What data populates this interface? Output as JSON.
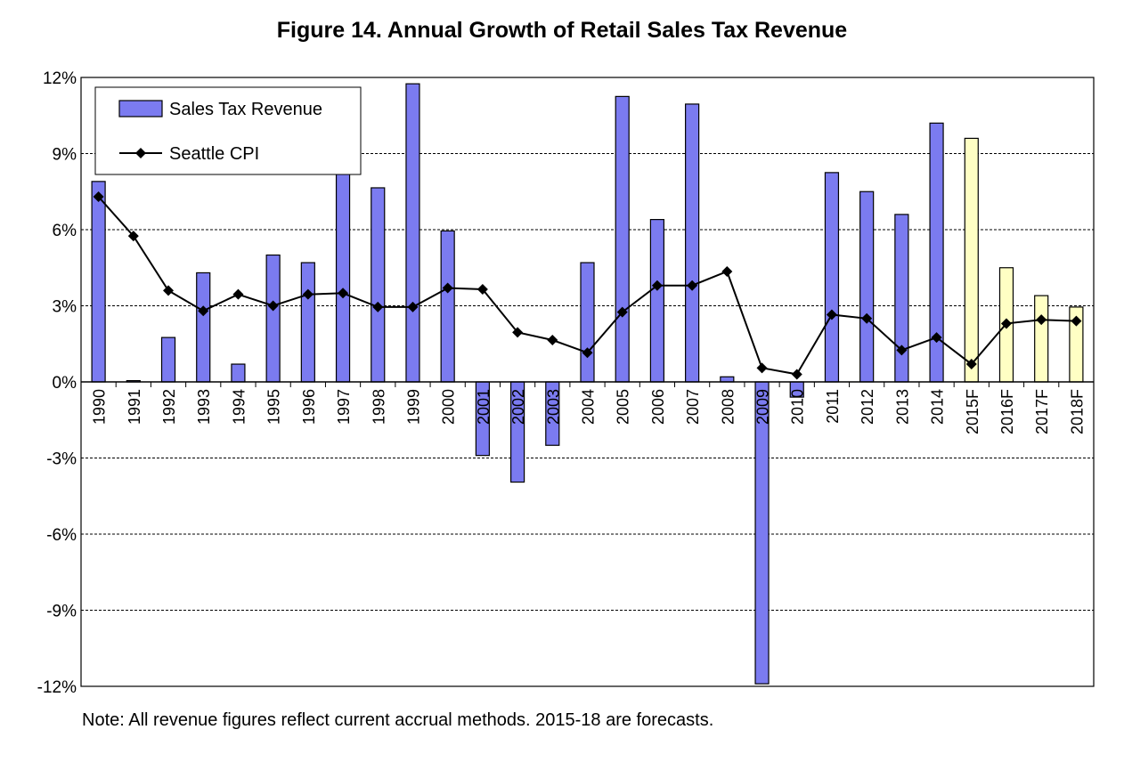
{
  "chart_data": {
    "type": "bar",
    "title": "Figure  14.  Annual Growth of Retail Sales Tax Revenue",
    "note": "Note:  All revenue figures reflect current accrual methods.  2015-18 are forecasts.",
    "categories": [
      "1990",
      "1991",
      "1992",
      "1993",
      "1994",
      "1995",
      "1996",
      "1997",
      "1998",
      "1999",
      "2000",
      "2001",
      "2002",
      "2003",
      "2004",
      "2005",
      "2006",
      "2007",
      "2008",
      "2009",
      "2010",
      "2011",
      "2012",
      "2013",
      "2014",
      "2015F",
      "2016F",
      "2017F",
      "2018F"
    ],
    "ylim": [
      -12,
      12
    ],
    "yticks": [
      12,
      9,
      6,
      3,
      0,
      -3,
      -6,
      -9,
      -12
    ],
    "ytick_labels": [
      "12%",
      "9%",
      "6%",
      "3%",
      "0%",
      "-3%",
      "-6%",
      "-9%",
      "-12%"
    ],
    "grid": "horizontal dashed",
    "legend_position": "top-left",
    "series": [
      {
        "name": "Sales Tax Revenue",
        "type": "bar",
        "color": "#7b7bf0",
        "forecast_color": "#ffffc4",
        "forecast_from_index": 25,
        "values": [
          7.9,
          0.05,
          1.75,
          4.3,
          0.7,
          5.0,
          4.7,
          8.3,
          7.65,
          11.75,
          5.95,
          -2.9,
          -3.95,
          -2.5,
          4.7,
          11.25,
          6.4,
          10.95,
          0.2,
          -11.9,
          -0.6,
          8.25,
          7.5,
          6.6,
          10.2,
          9.6,
          4.5,
          3.4,
          2.95
        ]
      },
      {
        "name": "Seattle CPI",
        "type": "line",
        "color": "#000000",
        "values": [
          7.3,
          5.75,
          3.6,
          2.8,
          3.45,
          3.0,
          3.45,
          3.5,
          2.95,
          2.95,
          3.7,
          3.65,
          1.95,
          1.65,
          1.15,
          2.75,
          3.8,
          3.8,
          4.35,
          0.55,
          0.3,
          2.65,
          2.5,
          1.25,
          1.75,
          0.7,
          2.3,
          2.45,
          2.4
        ]
      }
    ]
  }
}
